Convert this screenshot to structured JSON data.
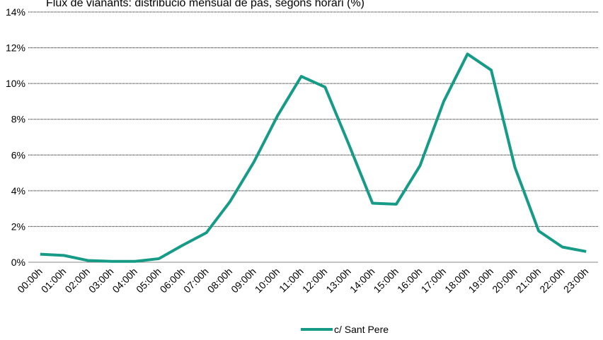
{
  "chart_data": {
    "type": "line",
    "title": "Flux de vianants: distribució mensual de pas, segons horari (%)",
    "categories": [
      "00:00h",
      "01:00h",
      "02:00h",
      "03:00h",
      "04:00h",
      "05:00h",
      "06:00h",
      "07:00h",
      "08:00h",
      "09:00h",
      "10:00h",
      "11:00h",
      "12:00h",
      "13:00h",
      "14:00h",
      "15:00h",
      "16:00h",
      "17:00h",
      "18:00h",
      "19:00h",
      "20:00h",
      "21:00h",
      "22:00h",
      "23:00h"
    ],
    "series": [
      {
        "name": "c/ Sant Pere",
        "color": "#169b87",
        "values": [
          0.45,
          0.38,
          0.1,
          0.05,
          0.05,
          0.2,
          0.95,
          1.65,
          3.4,
          5.6,
          8.2,
          10.4,
          9.8,
          6.6,
          3.3,
          3.25,
          5.4,
          9.0,
          11.65,
          10.75,
          5.3,
          1.75,
          0.85,
          0.6
        ]
      }
    ],
    "ylim": [
      0,
      14
    ],
    "yticks": [
      {
        "value": 0,
        "label": "0%"
      },
      {
        "value": 2,
        "label": "2%"
      },
      {
        "value": 4,
        "label": "4%"
      },
      {
        "value": 6,
        "label": "6%"
      },
      {
        "value": 8,
        "label": "8%"
      },
      {
        "value": 10,
        "label": "10%"
      },
      {
        "value": 12,
        "label": "12%"
      },
      {
        "value": 14,
        "label": "14%"
      }
    ],
    "grid": true,
    "legend": "bottom"
  }
}
